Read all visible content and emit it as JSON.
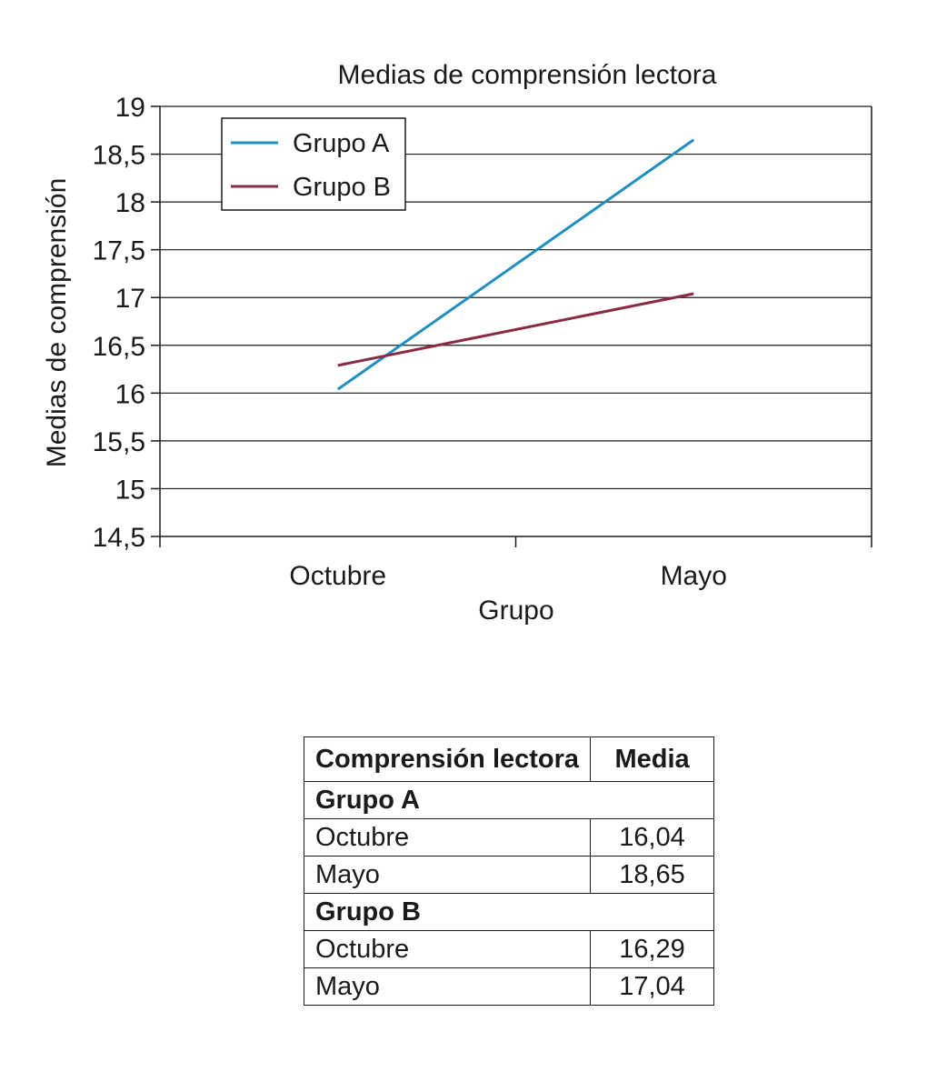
{
  "chart_data": {
    "type": "line",
    "title": "Medias de comprensión lectora",
    "xlabel": "Grupo",
    "ylabel": "Medias de comprensión",
    "categories": [
      "Octubre",
      "Mayo"
    ],
    "ylim": [
      14.5,
      19
    ],
    "yticks": [
      "14,5",
      "15",
      "15,5",
      "16",
      "16,5",
      "17",
      "17,5",
      "18",
      "18,5",
      "19"
    ],
    "ytick_values": [
      14.5,
      15,
      15.5,
      16,
      16.5,
      17,
      17.5,
      18,
      18.5,
      19
    ],
    "grid": true,
    "legend_position": "top-left",
    "series": [
      {
        "name": "Grupo A",
        "values": [
          16.04,
          18.65
        ],
        "color": "#1f8fc1"
      },
      {
        "name": "Grupo B",
        "values": [
          16.29,
          17.04
        ],
        "color": "#8b2a45"
      }
    ]
  },
  "table": {
    "header": {
      "col1": "Comprensión lectora",
      "col2": "Media"
    },
    "groups": [
      {
        "name": "Grupo A",
        "rows": [
          {
            "label": "Octubre",
            "value": "16,04"
          },
          {
            "label": "Mayo",
            "value": "18,65"
          }
        ]
      },
      {
        "name": "Grupo B",
        "rows": [
          {
            "label": "Octubre",
            "value": "16,29"
          },
          {
            "label": "Mayo",
            "value": "17,04"
          }
        ]
      }
    ]
  }
}
